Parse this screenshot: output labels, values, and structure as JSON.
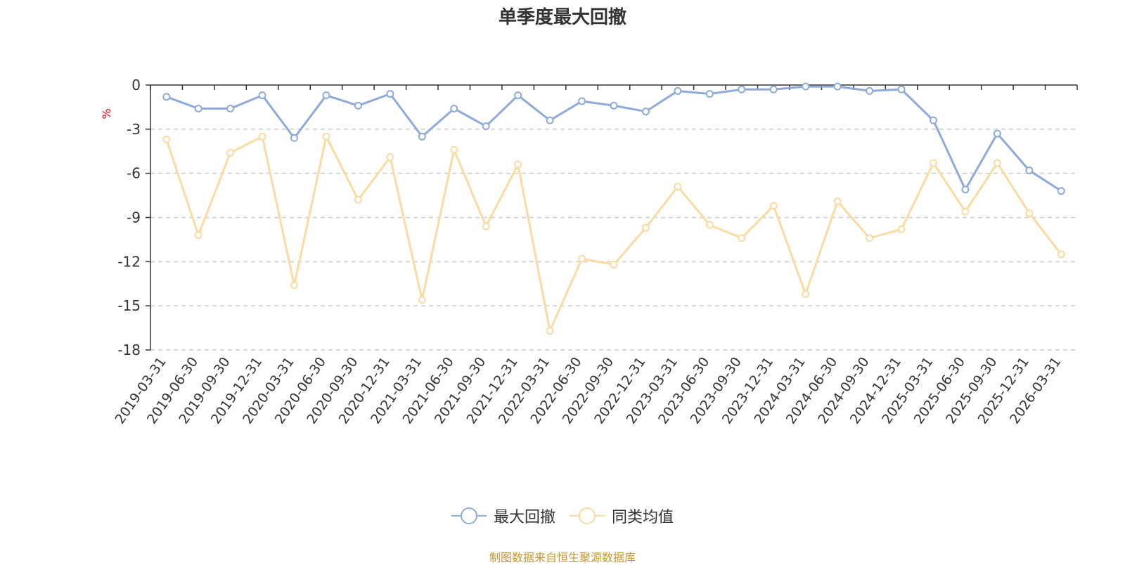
{
  "chart_data": {
    "type": "line",
    "title": "单季度最大回撤",
    "ylabel": "%",
    "ylim": [
      -18,
      0
    ],
    "yticks": [
      0,
      -3,
      -6,
      -9,
      -12,
      -15,
      -18
    ],
    "grid": true,
    "legend_position": "bottom-center",
    "categories": [
      "2019-03-31",
      "2019-06-30",
      "2019-09-30",
      "2019-12-31",
      "2020-03-31",
      "2020-06-30",
      "2020-09-30",
      "2020-12-31",
      "2021-03-31",
      "2021-06-30",
      "2021-09-30",
      "2021-12-31",
      "2022-03-31",
      "2022-06-30",
      "2022-09-30",
      "2022-12-31",
      "2023-03-31",
      "2023-06-30",
      "2023-09-30",
      "2023-12-31",
      "2024-03-31",
      "2024-06-30",
      "2024-09-30",
      "2024-12-31",
      "2025-03-31",
      "2025-06-30",
      "2025-09-30",
      "2025-12-31",
      "2026-03-31"
    ],
    "series": [
      {
        "name": "最大回撤",
        "color": "#8eaadb",
        "values": [
          -0.8,
          -1.6,
          -1.6,
          -0.7,
          -3.6,
          -0.7,
          -1.4,
          -0.6,
          -3.5,
          -1.6,
          -2.8,
          -0.7,
          -2.4,
          -1.1,
          -1.4,
          -1.8,
          -0.4,
          -0.6,
          -0.3,
          -0.3,
          -0.1,
          -0.1,
          -0.4,
          -0.3,
          -2.4,
          -7.1,
          -3.3,
          -5.8,
          -7.2
        ]
      },
      {
        "name": "同类均值",
        "color": "#fcdba3",
        "values": [
          -3.7,
          -10.2,
          -4.6,
          -3.5,
          -13.6,
          -3.5,
          -7.8,
          -4.9,
          -14.6,
          -4.4,
          -9.6,
          -5.4,
          -16.7,
          -11.8,
          -12.2,
          -9.7,
          -6.9,
          -9.5,
          -10.4,
          -8.2,
          -14.2,
          -7.9,
          -10.4,
          -9.8,
          -5.3,
          -8.6,
          -5.3,
          -8.7,
          -11.5
        ]
      }
    ],
    "source": "制图数据来自恒生聚源数据库"
  }
}
